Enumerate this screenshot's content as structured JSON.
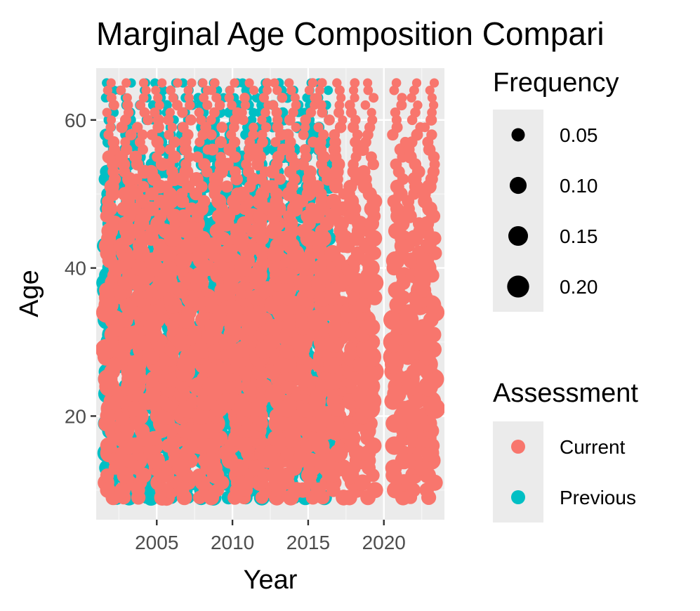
{
  "colors": {
    "panel_bg": "#ebebeb",
    "grid_major": "#ffffff",
    "grid_minor": "#f7f7f7",
    "current": "#f8766d",
    "previous": "#00bfc4",
    "size_key": "#000000"
  },
  "chart_data": {
    "type": "scatter",
    "title": "Marginal Age Composition Compari",
    "xlabel": "Year",
    "ylabel": "Age",
    "xlim": [
      2001,
      2024
    ],
    "ylim": [
      6,
      67
    ],
    "x_ticks": [
      2005,
      2010,
      2015,
      2020
    ],
    "y_ticks": [
      20,
      40,
      60
    ],
    "grid": true,
    "legend_position": "right",
    "size_legend": {
      "title": "Frequency",
      "values": [
        0.05,
        0.1,
        0.15,
        0.2
      ],
      "labels": [
        "0.05",
        "0.10",
        "0.15",
        "0.20"
      ]
    },
    "color_legend": {
      "title": "Assessment",
      "entries": [
        "Current",
        "Previous"
      ]
    },
    "series": [
      {
        "name": "Previous",
        "years": [
          2002,
          2003,
          2004,
          2005,
          2006,
          2007,
          2008,
          2009,
          2010,
          2011,
          2012,
          2013,
          2014,
          2015,
          2016
        ],
        "age_min": 9,
        "age_max": 65,
        "typical_frequency": 0.06
      },
      {
        "name": "Current",
        "years": [
          2002,
          2003,
          2004,
          2005,
          2006,
          2007,
          2008,
          2009,
          2010,
          2011,
          2012,
          2013,
          2014,
          2015,
          2016,
          2017,
          2018,
          2019,
          2021,
          2022,
          2023
        ],
        "age_min": 9,
        "age_max": 65,
        "typical_frequency": 0.06
      }
    ]
  }
}
